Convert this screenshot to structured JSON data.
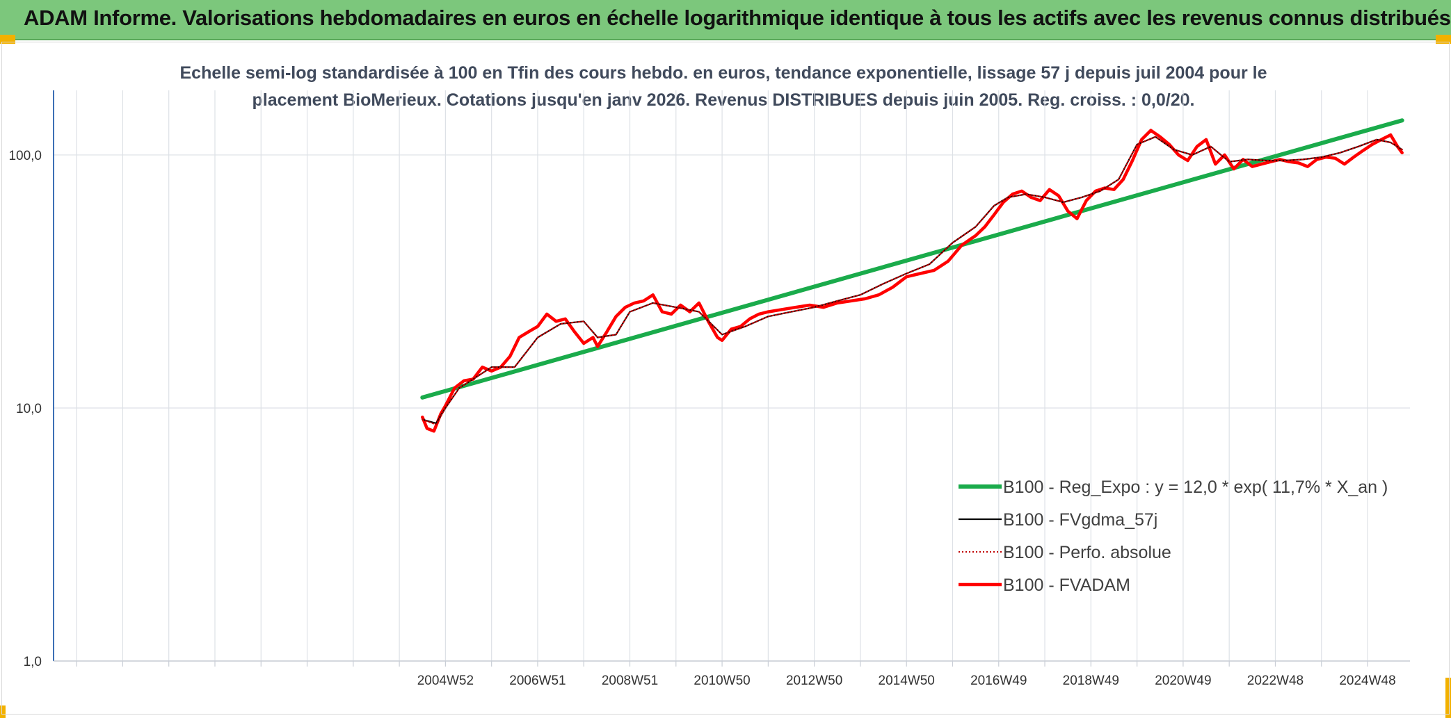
{
  "header": {
    "title": "ADAM Informe. Valorisations hebdomadaires en euros en échelle logarithmique identique à tous les actifs avec les revenus connus distribués"
  },
  "colors": {
    "banner": "#7cc77c",
    "accent": "#f2b100",
    "trend": "#1aab4b",
    "smooth": "#000000",
    "perf": "#c00000",
    "fvadam": "#ff0000"
  },
  "chart_data": {
    "type": "line",
    "title": "Echelle semi-log standardisée à 100 en Tfin des cours hebdo. en euros, tendance exponentielle, lissage 57 j depuis juil 2004 pour le placement BioMerieux. Cotations jusqu'en janv 2026. Revenus DISTRIBUES depuis juin 2005. Reg. croiss. : 0,0/20.",
    "y_scale": "log",
    "ylim": [
      1,
      180
    ],
    "y_ticks": [
      1,
      10,
      100
    ],
    "y_tick_labels": [
      "1,0",
      "10,0",
      "100,0"
    ],
    "x_start": 1996.5,
    "x_end": 2025.92,
    "x_tick_labels": [
      "2004W52",
      "2006W51",
      "2008W51",
      "2010W50",
      "2012W50",
      "2014W50",
      "2016W49",
      "2018W49",
      "2020W49",
      "2022W48",
      "2024W48"
    ],
    "x_tick_positions": [
      2005.0,
      2007.0,
      2009.0,
      2011.0,
      2013.0,
      2015.0,
      2017.0,
      2019.0,
      2021.0,
      2023.0,
      2025.0
    ],
    "grid": true,
    "legend_position": "bottom-right",
    "series": [
      {
        "name": "B100 - Reg_Expo : y = 12,0 * exp( 11,7% *  X_an )",
        "style": "thick-green",
        "x": [
          2004.5,
          2025.75
        ],
        "y": [
          11.0,
          137
        ]
      },
      {
        "name": "B100 - FVgdma_57j",
        "style": "thin-black",
        "x": [
          2004.5,
          2004.8,
          2005.0,
          2005.3,
          2005.6,
          2006.0,
          2006.5,
          2007.0,
          2007.5,
          2008.0,
          2008.3,
          2008.7,
          2009.0,
          2009.5,
          2010.0,
          2010.5,
          2011.0,
          2011.5,
          2012.0,
          2012.5,
          2013.0,
          2013.5,
          2014.0,
          2014.5,
          2015.0,
          2015.5,
          2016.0,
          2016.5,
          2016.9,
          2017.2,
          2017.6,
          2018.0,
          2018.4,
          2018.8,
          2019.2,
          2019.6,
          2020.0,
          2020.4,
          2020.8,
          2021.2,
          2021.6,
          2022.0,
          2022.4,
          2022.8,
          2023.2,
          2023.6,
          2024.0,
          2024.4,
          2024.8,
          2025.2,
          2025.5,
          2025.75
        ],
        "y": [
          9.0,
          8.7,
          10.0,
          12.0,
          13.0,
          14.5,
          14.5,
          19.0,
          21.5,
          22.0,
          19.0,
          19.5,
          24.0,
          26.0,
          25.0,
          24.0,
          19.5,
          21.0,
          23.0,
          24.0,
          25.0,
          26.5,
          28.0,
          31.0,
          34.0,
          37.0,
          45.0,
          52.0,
          63.0,
          68.0,
          70.0,
          68.0,
          65.0,
          68.0,
          72.0,
          80.0,
          110,
          118,
          105,
          100,
          108,
          94,
          96,
          95,
          95,
          96,
          98,
          102,
          108,
          115,
          112,
          105
        ]
      },
      {
        "name": "B100 - Perfo. absolue",
        "style": "dotted-darkred",
        "x": [
          2004.5,
          2004.8,
          2005.0,
          2005.3,
          2005.6,
          2006.0,
          2006.5,
          2007.0,
          2007.5,
          2008.0,
          2008.3,
          2008.7,
          2009.0,
          2009.5,
          2010.0,
          2010.5,
          2011.0,
          2011.5,
          2012.0,
          2012.5,
          2013.0,
          2013.5,
          2014.0,
          2014.5,
          2015.0,
          2015.5,
          2016.0,
          2016.5,
          2016.9,
          2017.2,
          2017.6,
          2018.0,
          2018.4,
          2018.8,
          2019.2,
          2019.6,
          2020.0,
          2020.4,
          2020.8,
          2021.2,
          2021.6,
          2022.0,
          2022.4,
          2022.8,
          2023.2,
          2023.6,
          2024.0,
          2024.4,
          2024.8,
          2025.2,
          2025.5,
          2025.75
        ],
        "y": [
          9.0,
          8.6,
          10.0,
          12.0,
          13.0,
          14.5,
          14.5,
          19.0,
          21.5,
          22.0,
          19.0,
          19.5,
          24.0,
          26.0,
          25.0,
          24.0,
          19.5,
          21.0,
          23.0,
          24.0,
          25.0,
          26.5,
          28.0,
          31.0,
          34.0,
          37.0,
          45.0,
          52.0,
          63.0,
          68.0,
          70.0,
          68.0,
          65.0,
          68.0,
          72.0,
          80.0,
          110,
          118,
          105,
          100,
          108,
          94,
          96,
          95,
          95,
          96,
          98,
          102,
          108,
          115,
          112,
          105
        ]
      },
      {
        "name": "B100 - FVADAM",
        "style": "thick-red",
        "x": [
          2004.5,
          2004.6,
          2004.75,
          2004.9,
          2005.0,
          2005.2,
          2005.4,
          2005.6,
          2005.8,
          2006.0,
          2006.2,
          2006.4,
          2006.6,
          2006.8,
          2007.0,
          2007.2,
          2007.4,
          2007.6,
          2007.8,
          2008.0,
          2008.2,
          2008.3,
          2008.5,
          2008.7,
          2008.9,
          2009.1,
          2009.3,
          2009.5,
          2009.7,
          2009.9,
          2010.1,
          2010.3,
          2010.5,
          2010.7,
          2010.9,
          2011.0,
          2011.2,
          2011.4,
          2011.6,
          2011.8,
          2012.0,
          2012.3,
          2012.6,
          2012.9,
          2013.2,
          2013.5,
          2013.8,
          2014.1,
          2014.4,
          2014.7,
          2015.0,
          2015.3,
          2015.6,
          2015.9,
          2016.2,
          2016.5,
          2016.7,
          2016.9,
          2017.1,
          2017.3,
          2017.5,
          2017.7,
          2017.9,
          2018.1,
          2018.3,
          2018.5,
          2018.7,
          2018.9,
          2019.1,
          2019.3,
          2019.5,
          2019.7,
          2019.9,
          2020.1,
          2020.3,
          2020.5,
          2020.7,
          2020.9,
          2021.1,
          2021.3,
          2021.5,
          2021.7,
          2021.9,
          2022.1,
          2022.3,
          2022.5,
          2022.7,
          2022.9,
          2023.1,
          2023.3,
          2023.5,
          2023.7,
          2023.9,
          2024.1,
          2024.3,
          2024.5,
          2024.7,
          2024.9,
          2025.1,
          2025.3,
          2025.5,
          2025.65,
          2025.75
        ],
        "y": [
          9.2,
          8.3,
          8.1,
          9.5,
          10.2,
          12.0,
          12.8,
          13.0,
          14.5,
          14.0,
          14.5,
          16.0,
          19.0,
          20.0,
          21.0,
          23.5,
          22.0,
          22.5,
          20.0,
          18.0,
          19.0,
          17.5,
          20.0,
          23.0,
          25.0,
          26.0,
          26.5,
          28.0,
          24.0,
          23.5,
          25.5,
          24.0,
          26.0,
          22.0,
          19.0,
          18.5,
          20.5,
          21.0,
          22.5,
          23.5,
          24.0,
          24.5,
          25.0,
          25.5,
          25.0,
          26.0,
          26.5,
          27.0,
          28.0,
          30.0,
          33.0,
          34.0,
          35.0,
          38.0,
          44.0,
          48.0,
          52.0,
          58.0,
          65.0,
          70.0,
          72.0,
          68.0,
          66.0,
          73.0,
          69.0,
          60.0,
          56.0,
          66.0,
          72.0,
          74.0,
          73.0,
          80.0,
          95.0,
          115,
          125,
          118,
          110,
          100,
          95.0,
          108,
          115,
          92.0,
          100,
          88.0,
          96.0,
          90.0,
          92.0,
          94.0,
          96.0,
          94.0,
          93.0,
          90.0,
          96.0,
          98.0,
          97.0,
          92.0,
          98.0,
          104,
          110,
          115,
          120,
          108,
          102
        ]
      }
    ]
  }
}
